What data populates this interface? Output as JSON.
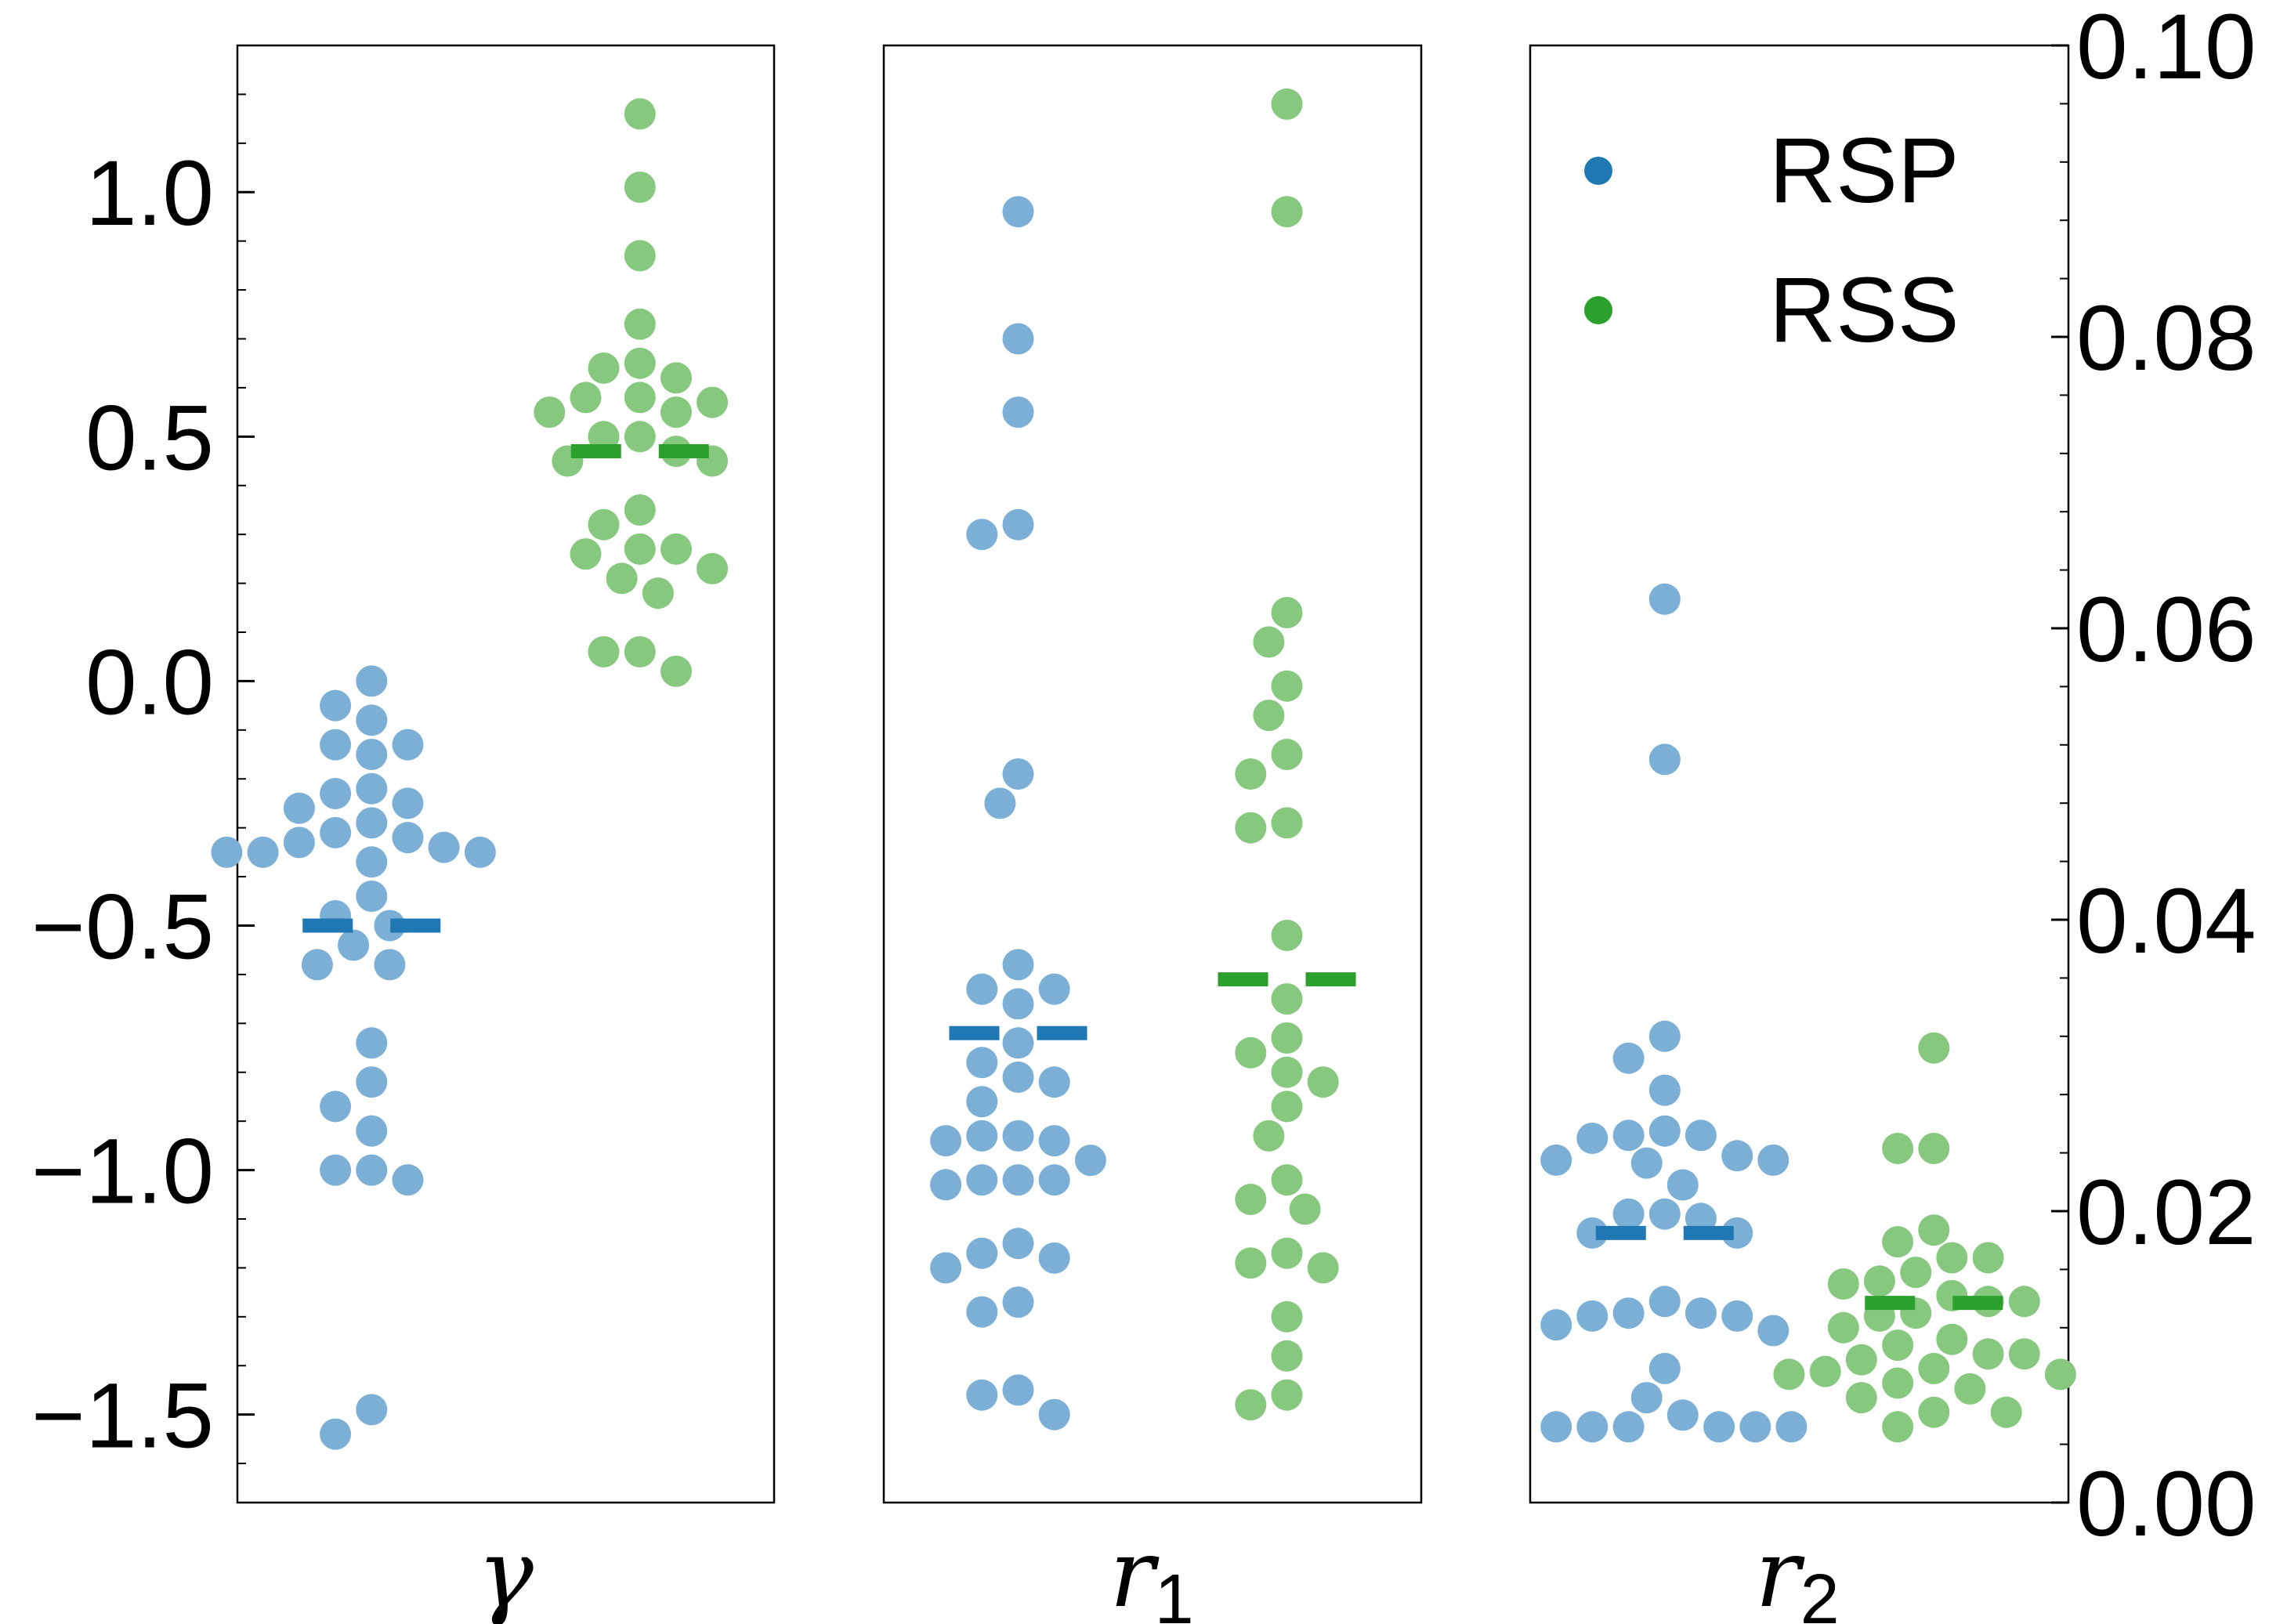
{
  "colors": {
    "rsp_point": "#7bafd6",
    "rss_point": "#86c97e",
    "rsp_mean": "#1f77b4",
    "rss_mean": "#2ca02c"
  },
  "chart_data": [
    {
      "type": "scatter",
      "panel": "gamma",
      "xlabel": "γ",
      "ylim": [
        -1.68,
        1.3
      ],
      "yticks": [
        -1.5,
        -1.0,
        -0.5,
        0.0,
        0.5,
        1.0
      ],
      "ytick_labels": [
        "−1.5",
        "−1.0",
        "−0.5",
        "0.0",
        "0.5",
        "1.0"
      ],
      "tick_side": "left",
      "series": [
        {
          "name": "RSP",
          "mean": -0.5,
          "values": [
            0.0,
            -0.05,
            -0.08,
            -0.13,
            -0.15,
            -0.13,
            -0.22,
            -0.25,
            -0.26,
            -0.23,
            -0.29,
            -0.31,
            -0.32,
            -0.34,
            -0.35,
            -0.37,
            -0.35,
            -0.35,
            -0.33,
            -0.44,
            -0.48,
            -0.5,
            -0.54,
            -0.58,
            -0.58,
            -0.74,
            -0.82,
            -0.87,
            -0.92,
            -1.0,
            -1.02,
            -1.0,
            -1.49,
            -1.54
          ]
        },
        {
          "name": "RSS",
          "mean": 0.47,
          "values": [
            1.16,
            1.01,
            0.87,
            0.73,
            0.64,
            0.62,
            0.65,
            0.58,
            0.58,
            0.55,
            0.55,
            0.57,
            0.5,
            0.5,
            0.45,
            0.45,
            0.47,
            0.35,
            0.32,
            0.27,
            0.27,
            0.26,
            0.21,
            0.23,
            0.18,
            0.06,
            0.06,
            0.02
          ]
        }
      ]
    },
    {
      "type": "scatter",
      "panel": "r1",
      "xlabel": "r1",
      "ylim": [
        -1.68,
        1.3
      ],
      "tick_side": "none",
      "series": [
        {
          "name": "RSP",
          "mean": -0.72,
          "values": [
            0.96,
            0.7,
            0.55,
            0.32,
            0.3,
            -0.19,
            -0.25,
            -0.58,
            -0.63,
            -0.66,
            -0.63,
            -0.74,
            -0.78,
            -0.82,
            -0.81,
            -0.86,
            -0.93,
            -0.94,
            -0.93,
            -0.94,
            -0.98,
            -1.02,
            -1.03,
            -1.02,
            -1.02,
            -1.15,
            -1.17,
            -1.18,
            -1.2,
            -1.27,
            -1.29,
            -1.46,
            -1.45,
            -1.5
          ]
        },
        {
          "name": "RSS",
          "mean": -0.61,
          "values": [
            1.18,
            0.96,
            0.14,
            0.08,
            -0.01,
            -0.07,
            -0.15,
            -0.19,
            -0.29,
            -0.3,
            -0.52,
            -0.65,
            -0.73,
            -0.76,
            -0.8,
            -0.82,
            -0.87,
            -0.93,
            -1.02,
            -1.06,
            -1.08,
            -1.17,
            -1.19,
            -1.2,
            -1.3,
            -1.38,
            -1.46,
            -1.48
          ]
        }
      ]
    },
    {
      "type": "scatter",
      "panel": "r2",
      "xlabel": "r2",
      "ylim": [
        0.0,
        0.1
      ],
      "yticks": [
        0.0,
        0.02,
        0.04,
        0.06,
        0.08,
        0.1
      ],
      "ytick_labels": [
        "0.00",
        "0.02",
        "0.04",
        "0.06",
        "0.08",
        "0.10"
      ],
      "tick_side": "right",
      "legend_position": "top-right",
      "series": [
        {
          "name": "RSP",
          "mean": 0.0185,
          "values": [
            0.062,
            0.051,
            0.032,
            0.0305,
            0.0283,
            0.0255,
            0.025,
            0.0252,
            0.0252,
            0.0238,
            0.0235,
            0.0233,
            0.0235,
            0.0218,
            0.0198,
            0.0195,
            0.0198,
            0.0185,
            0.0185,
            0.0138,
            0.013,
            0.0128,
            0.0128,
            0.0122,
            0.0118,
            0.013,
            0.0092,
            0.0072,
            0.0052,
            0.0052,
            0.0052,
            0.0052,
            0.0052,
            0.0052,
            0.006
          ]
        },
        {
          "name": "RSS",
          "mean": 0.0137,
          "values": [
            0.0312,
            0.0243,
            0.0243,
            0.0187,
            0.0179,
            0.0168,
            0.0168,
            0.0158,
            0.0152,
            0.015,
            0.0142,
            0.0138,
            0.0138,
            0.013,
            0.0128,
            0.012,
            0.0112,
            0.0108,
            0.0102,
            0.0102,
            0.0098,
            0.0092,
            0.009,
            0.0088,
            0.0088,
            0.0082,
            0.0078,
            0.0072,
            0.0062,
            0.0062,
            0.0052
          ]
        }
      ]
    }
  ],
  "legend": {
    "items": [
      {
        "label": "RSP",
        "color": "#1f77b4"
      },
      {
        "label": "RSS",
        "color": "#2ca02c"
      }
    ]
  }
}
